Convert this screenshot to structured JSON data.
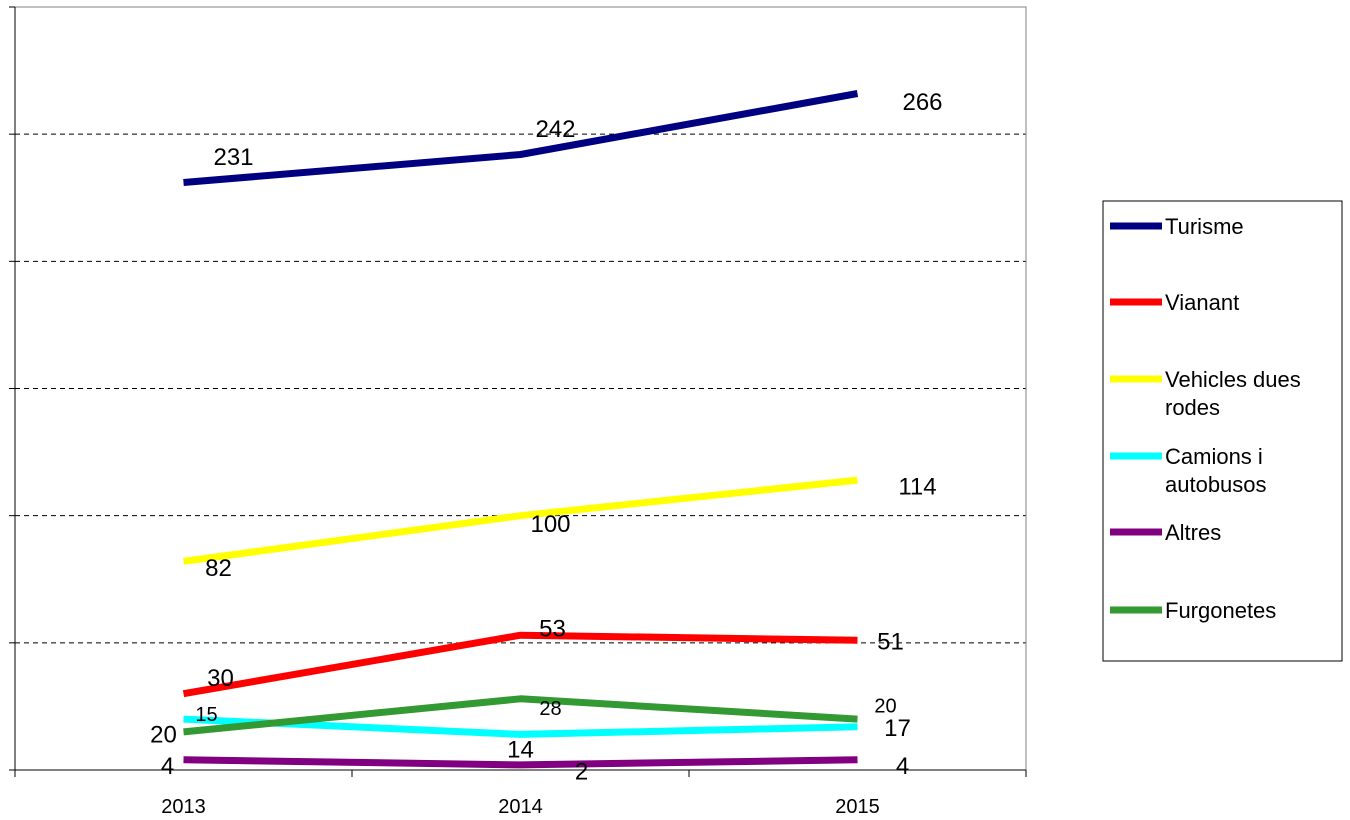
{
  "chart_data": {
    "type": "line",
    "title": "",
    "xlabel": "",
    "ylabel": "",
    "categories": [
      "2013",
      "2014",
      "2015"
    ],
    "ylim": [
      0,
      300
    ],
    "y_grid_step": 50,
    "grid": "horizontal-dashed",
    "legend_position": "right",
    "series": [
      {
        "name": "Turisme",
        "color": "#000080",
        "values": [
          231,
          242,
          266
        ],
        "labels": [
          "231",
          "242",
          "266"
        ]
      },
      {
        "name": "Vianant",
        "color": "#ff0000",
        "values": [
          30,
          53,
          51
        ],
        "labels": [
          "30",
          "53",
          "51"
        ]
      },
      {
        "name": "Vehicles dues rodes",
        "color": "#ffff00",
        "values": [
          82,
          100,
          114
        ],
        "labels": [
          "82",
          "100",
          "114"
        ]
      },
      {
        "name": "Camions i autobusos",
        "color": "#00ffff",
        "values": [
          20,
          14,
          17
        ],
        "labels": [
          "20",
          "14",
          "17"
        ]
      },
      {
        "name": "Altres",
        "color": "#800080",
        "values": [
          4,
          2,
          4
        ],
        "labels": [
          "4",
          "2",
          "4"
        ]
      },
      {
        "name": "Furgonetes",
        "color": "#339933",
        "values": [
          15,
          28,
          20
        ],
        "labels": [
          "15",
          "28",
          "20"
        ]
      }
    ]
  }
}
